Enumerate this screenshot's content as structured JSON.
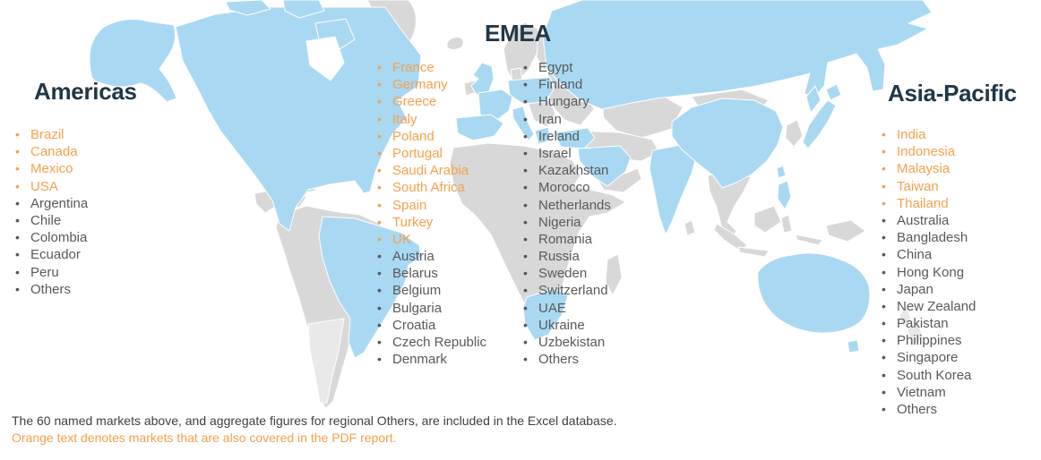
{
  "colors": {
    "pdf_orange": "#F6A04D",
    "heading_navy": "#223747",
    "list_text_gray": "#595959",
    "footer_text": "#3F3F3F",
    "map_highlight_blue": "#A9D8F3",
    "map_land_gray": "#D8D8D8",
    "map_land_pale": "#E9E9E9"
  },
  "regions": {
    "americas": {
      "title": "Americas",
      "columns": {
        "col1": [
          {
            "label": "Brazil",
            "pdf": true
          },
          {
            "label": "Canada",
            "pdf": true
          },
          {
            "label": "Mexico",
            "pdf": true
          },
          {
            "label": "USA",
            "pdf": true
          },
          {
            "label": "Argentina",
            "pdf": false
          },
          {
            "label": "Chile",
            "pdf": false
          },
          {
            "label": "Colombia",
            "pdf": false
          },
          {
            "label": "Ecuador",
            "pdf": false
          },
          {
            "label": "Peru",
            "pdf": false
          },
          {
            "label": "Others",
            "pdf": false
          }
        ]
      }
    },
    "emea": {
      "title": "EMEA",
      "columns": {
        "col1": [
          {
            "label": "France",
            "pdf": true
          },
          {
            "label": "Germany",
            "pdf": true
          },
          {
            "label": "Greece",
            "pdf": true
          },
          {
            "label": "Italy",
            "pdf": true
          },
          {
            "label": "Poland",
            "pdf": true
          },
          {
            "label": "Portugal",
            "pdf": true
          },
          {
            "label": "Saudi Arabia",
            "pdf": true
          },
          {
            "label": "South Africa",
            "pdf": true
          },
          {
            "label": "Spain",
            "pdf": true
          },
          {
            "label": "Turkey",
            "pdf": true
          },
          {
            "label": "UK",
            "pdf": true
          },
          {
            "label": "Austria",
            "pdf": false
          },
          {
            "label": "Belarus",
            "pdf": false
          },
          {
            "label": "Belgium",
            "pdf": false
          },
          {
            "label": "Bulgaria",
            "pdf": false
          },
          {
            "label": "Croatia",
            "pdf": false
          },
          {
            "label": "Czech Republic",
            "pdf": false
          },
          {
            "label": "Denmark",
            "pdf": false
          }
        ],
        "col2": [
          {
            "label": "Egypt",
            "pdf": false
          },
          {
            "label": "Finland",
            "pdf": false
          },
          {
            "label": "Hungary",
            "pdf": false
          },
          {
            "label": "Iran",
            "pdf": false
          },
          {
            "label": "Ireland",
            "pdf": false
          },
          {
            "label": "Israel",
            "pdf": false
          },
          {
            "label": "Kazakhstan",
            "pdf": false
          },
          {
            "label": "Morocco",
            "pdf": false
          },
          {
            "label": "Netherlands",
            "pdf": false
          },
          {
            "label": "Nigeria",
            "pdf": false
          },
          {
            "label": "Romania",
            "pdf": false
          },
          {
            "label": "Russia",
            "pdf": false
          },
          {
            "label": "Sweden",
            "pdf": false
          },
          {
            "label": "Switzerland",
            "pdf": false
          },
          {
            "label": "UAE",
            "pdf": false
          },
          {
            "label": "Ukraine",
            "pdf": false
          },
          {
            "label": "Uzbekistan",
            "pdf": false
          },
          {
            "label": "Others",
            "pdf": false
          }
        ]
      }
    },
    "asia_pacific": {
      "title": "Asia-Pacific",
      "columns": {
        "col1": [
          {
            "label": "India",
            "pdf": true
          },
          {
            "label": "Indonesia",
            "pdf": true
          },
          {
            "label": "Malaysia",
            "pdf": true
          },
          {
            "label": "Taiwan",
            "pdf": true
          },
          {
            "label": "Thailand",
            "pdf": true
          },
          {
            "label": "Australia",
            "pdf": false
          },
          {
            "label": "Bangladesh",
            "pdf": false
          },
          {
            "label": "China",
            "pdf": false
          },
          {
            "label": "Hong Kong",
            "pdf": false
          },
          {
            "label": "Japan",
            "pdf": false
          },
          {
            "label": "New Zealand",
            "pdf": false
          },
          {
            "label": "Pakistan",
            "pdf": false
          },
          {
            "label": "Philippines",
            "pdf": false
          },
          {
            "label": "Singapore",
            "pdf": false
          },
          {
            "label": "South Korea",
            "pdf": false
          },
          {
            "label": "Vietnam",
            "pdf": false
          },
          {
            "label": "Others",
            "pdf": false
          }
        ]
      }
    }
  },
  "footer": {
    "line1": "The 60 named markets above, and aggregate figures for regional Others, are included in the Excel database.",
    "line2": "Orange text denotes markets that are also covered in the PDF report."
  }
}
